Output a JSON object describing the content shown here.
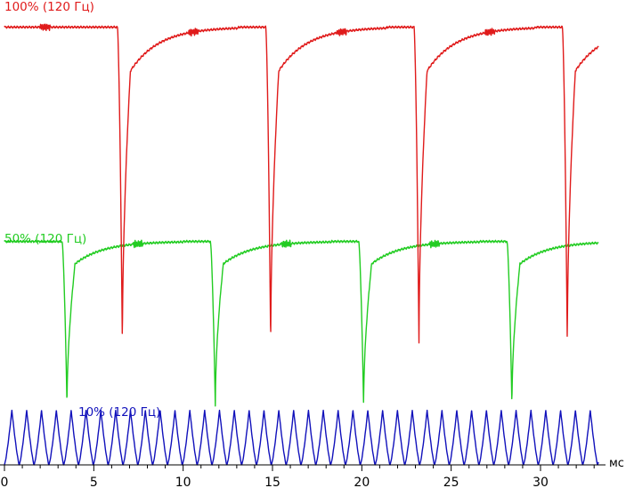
{
  "chart_data": {
    "type": "line",
    "x_unit": "мс",
    "xlim": [
      0,
      33.3
    ],
    "xticks": [
      0,
      5,
      10,
      15,
      20,
      25,
      30
    ],
    "grid": false,
    "legend": "none",
    "series": [
      {
        "name": "100% (120 Гц)",
        "color": "#e01b1b",
        "level_high": 0.96,
        "level_low": 0.26,
        "dip_times": [
          6.6,
          14.9,
          23.2,
          31.5
        ],
        "flicker_hz": 120
      },
      {
        "name": "50% (120 Гц)",
        "color": "#22cc22",
        "level_high": 0.49,
        "level_low": 0.13,
        "dip_times": [
          3.5,
          11.8,
          20.1,
          28.4
        ],
        "flicker_hz": 120
      },
      {
        "name": "10% (120 Гц)",
        "color": "#1111bb",
        "level_high": 0.12,
        "level_low": 0.05,
        "pwm_period_ms": 0.83,
        "flicker_hz": 120
      }
    ]
  }
}
